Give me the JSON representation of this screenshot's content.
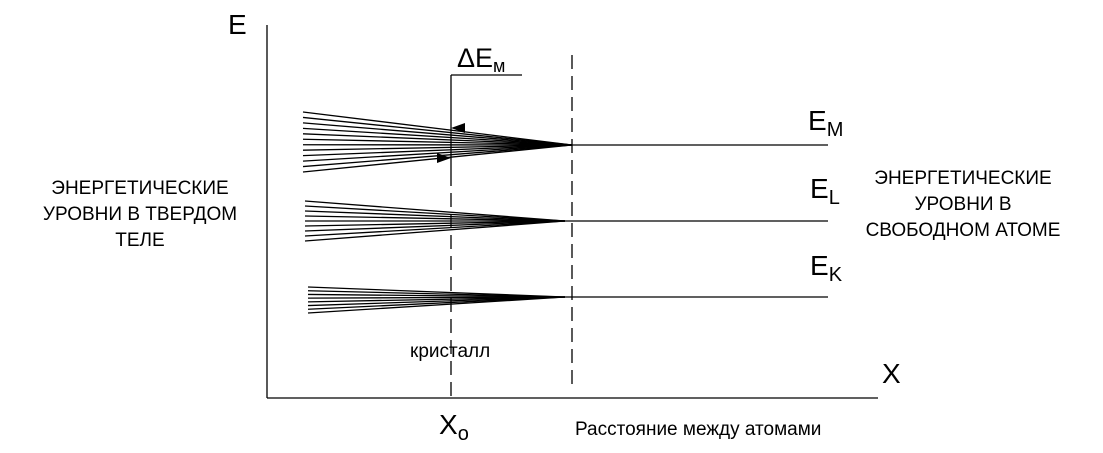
{
  "axes": {
    "y_label": "E",
    "x_label": "X",
    "x0": {
      "main": "X",
      "sub": "o"
    },
    "x_caption": "Расстояние между атомами"
  },
  "levels": [
    {
      "main": "E",
      "sub": "M"
    },
    {
      "main": "E",
      "sub": "L"
    },
    {
      "main": "E",
      "sub": "K"
    }
  ],
  "delta": {
    "main": "ΔE",
    "sub": "м"
  },
  "crystal": "кристалл",
  "left_note": [
    "ЭНЕРГЕТИЧЕСКИЕ",
    "УРОВНИ В ТВЕРДОМ",
    "ТЕЛЕ"
  ],
  "right_note": [
    "ЭНЕРГЕТИЧЕСКИЕ",
    "УРОВНИ В",
    "СВОБОДНОМ АТОМЕ"
  ]
}
